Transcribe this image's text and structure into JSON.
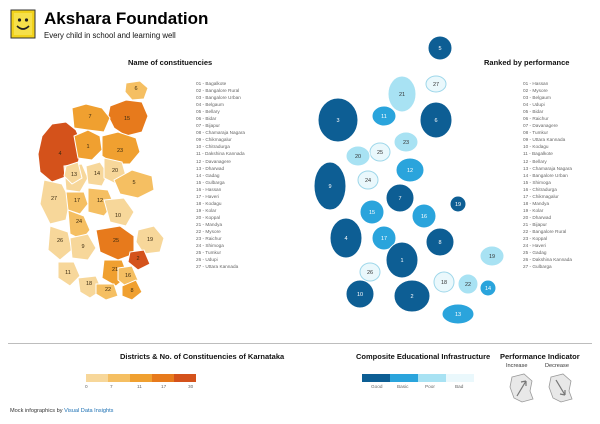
{
  "header": {
    "brand_name": "Akshara Foundation",
    "tagline": "Every child in school and learning well"
  },
  "left_map": {
    "title": "Name of constituencies",
    "constituencies": [
      "01 - Bagalkote",
      "02 - Bangalore Rural",
      "03 - Bangalore Urban",
      "04 - Belgaum",
      "05 - Bellary",
      "06 - Bidar",
      "07 - Bijapur",
      "08 - Chamaraja Nagara",
      "09 - Chikmagalur",
      "10 - Chitradurga",
      "11 - Dakshina Kannada",
      "12 - Davanagere",
      "13 - Dharwad",
      "14 - Gadag",
      "15 - Gulbarga",
      "16 - Hassan",
      "17 - Haveri",
      "18 - Kodagu",
      "19 - Kolar",
      "20 - Koppal",
      "21 - Mandya",
      "22 - Mysore",
      "23 - Raichur",
      "24 - Shimoga",
      "25 - Tumkur",
      "26 - Udupi",
      "27 - Uttara Kannada"
    ],
    "region_labels": [
      "1",
      "2",
      "3",
      "4",
      "5",
      "6",
      "7",
      "8",
      "9",
      "10",
      "11",
      "12",
      "13",
      "14",
      "15",
      "16",
      "17",
      "18",
      "19",
      "20",
      "21",
      "22",
      "23",
      "24",
      "25",
      "26",
      "27"
    ]
  },
  "right_map": {
    "title": "Ranked by performance",
    "ranking": [
      "01 - Hassan",
      "02 - Mysore",
      "03 - Belgaum",
      "04 - Udupi",
      "05 - Bidar",
      "06 - Raichur",
      "07 - Davanagere",
      "08 - Tumkur",
      "09 - Uttara Kannada",
      "10 - Kodagu",
      "11 - Bagalkote",
      "12 - Bellary",
      "13 - Chamaraja Nagara",
      "14 - Bangalore Urban",
      "15 - Shimoga",
      "16 - Chitradurga",
      "17 - Chikmagalur",
      "18 - Mandya",
      "19 - Kolar",
      "20 - Dharwad",
      "21 - Bijapur",
      "22 - Bangalore Rural",
      "23 - Koppal",
      "24 - Haveri",
      "25 - Gadag",
      "26 - Dakshina Kannada",
      "27 - Gulbarga"
    ]
  },
  "legend_left": {
    "title": "Districts & No. of Constituencies of Karnataka",
    "ticks": [
      "0",
      "7",
      "11",
      "17",
      "30"
    ],
    "colors": [
      "#f7d79a",
      "#f5bf62",
      "#f0a030",
      "#e77a1c",
      "#d4521b"
    ]
  },
  "legend_right": {
    "title": "Composite Educational Infrastructure",
    "labels": [
      "Good",
      "Basic",
      "Poor",
      "Bad"
    ],
    "colors": [
      "#0d5e94",
      "#2aa4dc",
      "#a8e2f3",
      "#eaf8fc"
    ]
  },
  "performance": {
    "title": "Performance Indicator",
    "increase": "Increase",
    "decrease": "Decrease"
  },
  "footer": {
    "prefix": "Mock infographics by ",
    "link": "Visual Data Insights"
  }
}
